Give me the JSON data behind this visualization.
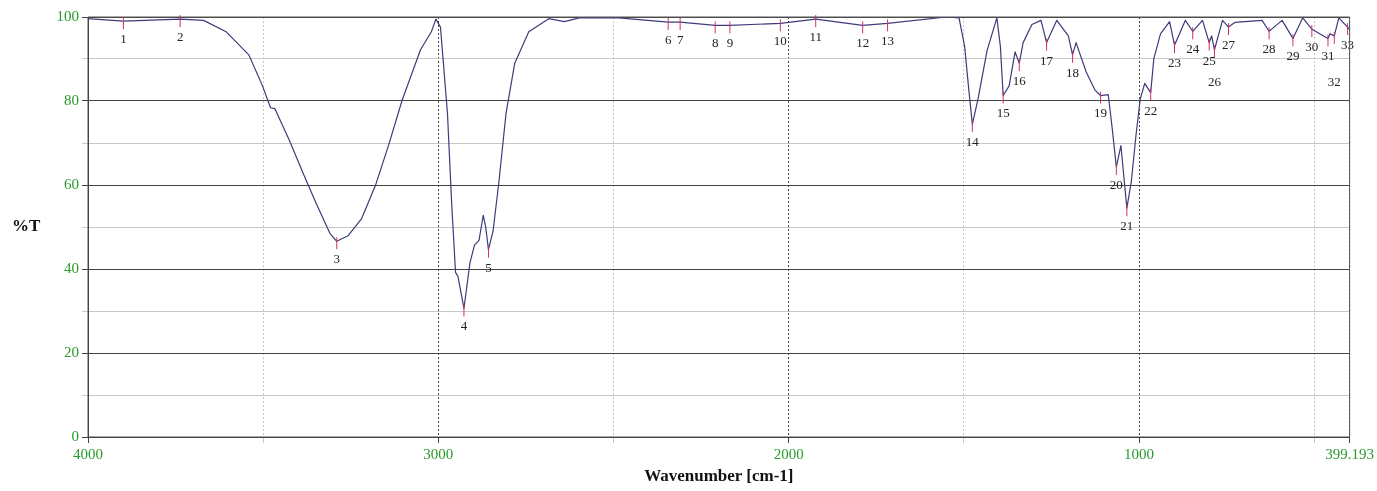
{
  "chart_data": {
    "type": "line",
    "xlabel": "Wavenumber [cm-1]",
    "ylabel": "%T",
    "xlim": [
      4000,
      399.193
    ],
    "ylim": [
      0,
      100
    ],
    "xticks": [
      4000,
      {
        "value": 3500,
        "label": null
      },
      3000,
      {
        "value": 2500,
        "label": null
      },
      2000,
      {
        "value": 1500,
        "label": null
      },
      1000,
      {
        "value": 500,
        "label": null
      },
      399.193
    ],
    "yticks": [
      0,
      {
        "value": 10,
        "label": null
      },
      20,
      {
        "value": 30,
        "label": null
      },
      40,
      {
        "value": 50,
        "label": null
      },
      60,
      {
        "value": 70,
        "label": null
      },
      80,
      {
        "value": 90,
        "label": null
      },
      100
    ],
    "grid": true,
    "legend": false,
    "marker": "none",
    "line_style": "solid",
    "series": [
      {
        "color": "#3c3c7c",
        "x": [
          4000,
          3899,
          3737,
          3670,
          3606,
          3541,
          3502,
          3479,
          3467,
          3425,
          3387,
          3348,
          3309,
          3290,
          3258,
          3219,
          3180,
          3142,
          3103,
          3051,
          3020,
          3007,
          2994,
          2974,
          2962,
          2951,
          2944,
          2927,
          2910,
          2897,
          2884,
          2872,
          2865,
          2857,
          2844,
          2827,
          2807,
          2782,
          2742,
          2685,
          2640,
          2598,
          2485,
          2344,
          2310,
          2210,
          2168,
          2024,
          1923,
          1789,
          1718,
          1550,
          1514,
          1498,
          1486,
          1476,
          1460,
          1434,
          1406,
          1396,
          1388,
          1371,
          1354,
          1342,
          1331,
          1306,
          1280,
          1264,
          1235,
          1202,
          1190,
          1180,
          1151,
          1126,
          1110,
          1088,
          1076,
          1065,
          1052,
          1035,
          1022,
          1009,
          997,
          984,
          967,
          958,
          939,
          913,
          899,
          868,
          847,
          819,
          800,
          793,
          785,
          762,
          745,
          727,
          649,
          629,
          592,
          561,
          533,
          507,
          461,
          455,
          443,
          430,
          405,
          399.193
        ],
        "values": [
          99.6,
          99,
          99.5,
          99.2,
          96.5,
          91,
          83.6,
          78.4,
          78.2,
          70.6,
          63,
          55.5,
          48.4,
          46.6,
          47.9,
          52,
          59.8,
          69.5,
          80.3,
          92.2,
          96.5,
          99.5,
          97.6,
          77,
          55.5,
          39.2,
          38.2,
          30.6,
          41.4,
          45.7,
          46.8,
          52.8,
          50,
          44.6,
          49,
          60.9,
          77,
          89,
          96.5,
          99.6,
          98.9,
          99.8,
          99.8,
          98.8,
          98.8,
          98,
          98,
          98.5,
          99.5,
          98,
          98.5,
          100,
          99.8,
          93,
          82.6,
          74.5,
          80.4,
          92,
          99.8,
          93,
          81.3,
          83.6,
          91.7,
          89,
          93.9,
          98.2,
          99.2,
          93.9,
          99.2,
          95.5,
          91,
          93.9,
          86.9,
          82.6,
          81.3,
          81.5,
          72.9,
          64.3,
          69.4,
          54.5,
          61,
          71.8,
          80.4,
          84.2,
          82,
          90.1,
          96,
          98.9,
          93.3,
          99.2,
          96.6,
          99.2,
          93.9,
          95.5,
          92.2,
          99.2,
          97.6,
          98.7,
          99.2,
          96.6,
          99.2,
          94.9,
          99.8,
          97.1,
          94.9,
          96,
          95.5,
          99.8,
          97.6,
          97
        ]
      }
    ],
    "annotations": [
      {
        "text": "1",
        "x": 3899,
        "y": 99
      },
      {
        "text": "2",
        "x": 3737,
        "y": 99.5
      },
      {
        "text": "3",
        "x": 3290,
        "y": 46.6
      },
      {
        "text": "4",
        "x": 2927,
        "y": 30.6
      },
      {
        "text": "5",
        "x": 2857,
        "y": 44.6
      },
      {
        "text": "6",
        "x": 2344,
        "y": 98.8
      },
      {
        "text": "7",
        "x": 2310,
        "y": 98.8
      },
      {
        "text": "8",
        "x": 2210,
        "y": 98
      },
      {
        "text": "9",
        "x": 2168,
        "y": 98
      },
      {
        "text": "10",
        "x": 2024,
        "y": 98.5
      },
      {
        "text": "11",
        "x": 1923,
        "y": 99.5
      },
      {
        "text": "12",
        "x": 1789,
        "y": 98
      },
      {
        "text": "13",
        "x": 1718,
        "y": 98.5
      },
      {
        "text": "14",
        "x": 1476,
        "y": 74.5
      },
      {
        "text": "15",
        "x": 1388,
        "y": 81.3
      },
      {
        "text": "16",
        "x": 1342,
        "y": 89
      },
      {
        "text": "17",
        "x": 1264,
        "y": 93.9
      },
      {
        "text": "18",
        "x": 1190,
        "y": 91
      },
      {
        "text": "19",
        "x": 1110,
        "y": 81.3
      },
      {
        "text": "20",
        "x": 1065,
        "y": 64.3
      },
      {
        "text": "21",
        "x": 1035,
        "y": 54.5
      },
      {
        "text": "22",
        "x": 967,
        "y": 82
      },
      {
        "text": "23",
        "x": 899,
        "y": 93.3
      },
      {
        "text": "24",
        "x": 847,
        "y": 96.6
      },
      {
        "text": "25",
        "x": 800,
        "y": 93.9
      },
      {
        "text": "26",
        "x": 785,
        "y": 92.2
      },
      {
        "text": "27",
        "x": 745,
        "y": 97.6
      },
      {
        "text": "28",
        "x": 629,
        "y": 96.6
      },
      {
        "text": "29",
        "x": 561,
        "y": 94.9
      },
      {
        "text": "30",
        "x": 507,
        "y": 97.1
      },
      {
        "text": "31",
        "x": 461,
        "y": 94.9
      },
      {
        "text": "32",
        "x": 443,
        "y": 95.5
      },
      {
        "text": "33",
        "x": 405,
        "y": 97.6
      }
    ]
  }
}
